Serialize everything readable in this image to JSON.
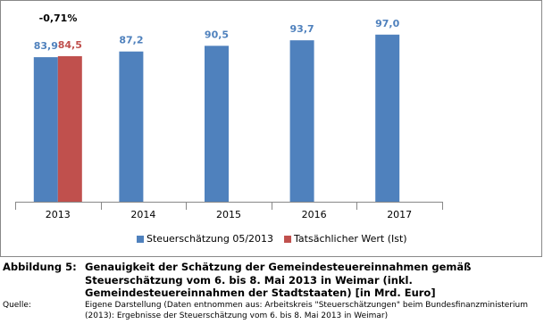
{
  "chart_data": {
    "type": "bar",
    "annotation": "-0,71%",
    "categories": [
      "2013",
      "2014",
      "2015",
      "2016",
      "2017"
    ],
    "series": [
      {
        "name": "Steuerschätzung 05/2013",
        "color": "#4f81bd",
        "values": [
          83.9,
          87.2,
          90.5,
          93.7,
          97.0
        ],
        "value_labels": [
          "83,9",
          "87,2",
          "90,5",
          "93,7",
          "97,0"
        ]
      },
      {
        "name": "Tatsächlicher Wert (Ist)",
        "color": "#c0504d",
        "values": [
          84.5,
          null,
          null,
          null,
          null
        ],
        "value_labels": [
          "84,5",
          null,
          null,
          null,
          null
        ]
      }
    ],
    "ylim": [
      0,
      100
    ],
    "legend": "bottom"
  },
  "caption": {
    "label": "Abbildung 5:",
    "text": "Genauigkeit der Schätzung der Gemeindesteuereinnahmen gemäß Steuerschätzung vom 6. bis 8. Mai 2013 in Weimar (inkl. Gemeindesteuereinnahmen der Stadtstaaten) [in Mrd. Euro]",
    "source_label": "Quelle:",
    "source": "Eigene Darstellung (Daten entnommen aus: Arbeitskreis \"Steuerschätzungen\" beim Bundesfinanzministerium (2013): Ergebnisse der Steuerschätzung vom 6. bis 8. Mai 2013 in Weimar)"
  }
}
